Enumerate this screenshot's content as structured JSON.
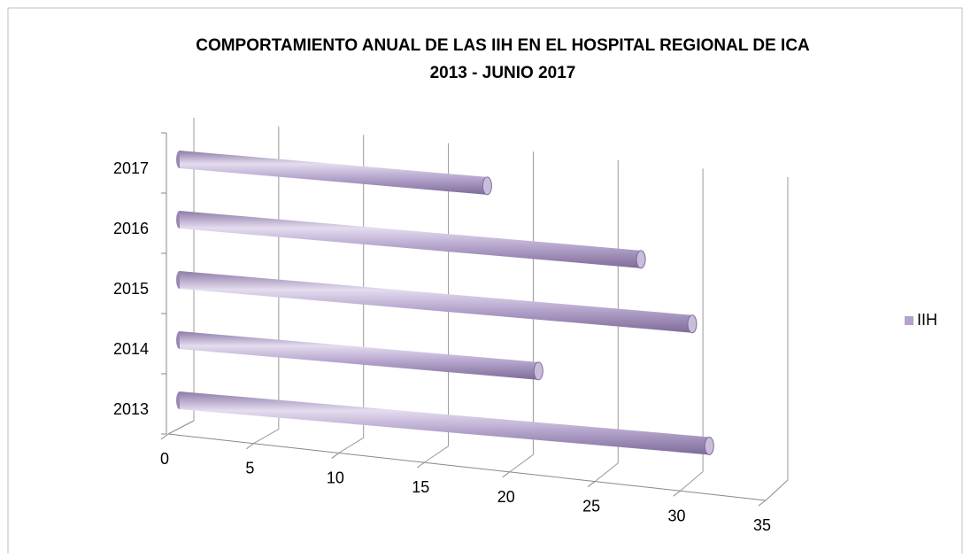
{
  "chart_data": {
    "type": "bar3d_horizontal",
    "title": [
      "COMPORTAMIENTO ANUAL DE LAS IIH EN EL HOSPITAL REGIONAL DE ICA",
      "2013  -  JUNIO  2017"
    ],
    "categories": [
      "2013",
      "2014",
      "2015",
      "2016",
      "2017"
    ],
    "series": [
      {
        "name": "IIH",
        "color": "#b3a2cc",
        "values": [
          31,
          21,
          30,
          27,
          18
        ]
      }
    ],
    "xlim": [
      0,
      35
    ],
    "xticks": [
      0,
      5,
      10,
      15,
      20,
      25,
      30,
      35
    ],
    "grid": true,
    "legend": "right"
  }
}
